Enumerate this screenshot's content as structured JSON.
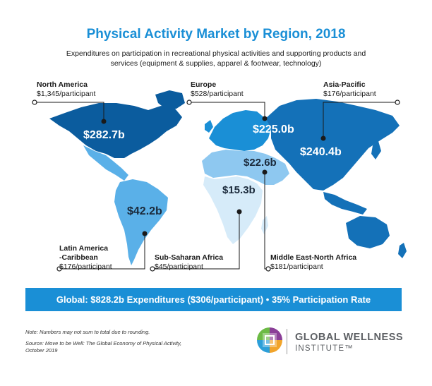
{
  "title": "Physical Activity Market by Region, 2018",
  "subtitle": "Expenditures on participation in recreational physical activities and supporting products and services (equipment & supplies, apparel & footwear, technology)",
  "regions": {
    "north_america": {
      "name": "North America",
      "per": "$1,345/participant",
      "value": "$282.7b",
      "color": "#0b5c9e"
    },
    "europe": {
      "name": "Europe",
      "per": "$528/participant",
      "value": "$225.0b",
      "color": "#1a8fd6"
    },
    "asia_pacific": {
      "name": "Asia-Pacific",
      "per": "$176/participant",
      "value": "$240.4b",
      "color": "#1471b8"
    },
    "latin_america": {
      "name_line1": "Latin America",
      "name_line2": "-Caribbean",
      "per": "$176/participant",
      "value": "$42.2b",
      "color": "#5ab0e8"
    },
    "sub_saharan_africa": {
      "name": "Sub-Saharan Africa",
      "per": "$45/participant",
      "value": "$15.3b",
      "color": "#d6ebf9"
    },
    "mena": {
      "name": "Middle East-North Africa",
      "per": "$181/participant",
      "value": "$22.6b",
      "color": "#8ec8f0"
    }
  },
  "global": "Global:  $828.2b Expenditures ($306/participant) • 35% Participation Rate",
  "note": "Note: Numbers may not sum to total due to rounding.",
  "source_line1": "Source: Move to be Well: The Global Economy of Physical Activity,",
  "source_line2": "October 2019",
  "logo": {
    "line1": "GLOBAL WELLNESS",
    "line2": "INSTITUTE™"
  }
}
